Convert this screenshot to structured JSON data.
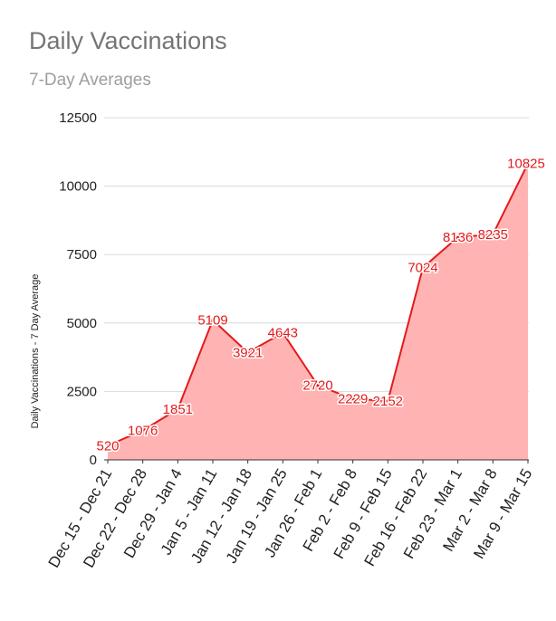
{
  "chart_data": {
    "type": "area",
    "title": "Daily Vaccinations",
    "subtitle": "7-Day Averages",
    "xlabel": "",
    "ylabel": "Daily Vaccinations - 7 Day Average",
    "categories": [
      "Dec 15 - Dec 21",
      "Dec 22 - Dec 28",
      "Dec 29 - Jan 4",
      "Jan 5 - Jan 11",
      "Jan 12 - Jan 18",
      "Jan 19 - Jan 25",
      "Jan 26 - Feb 1",
      "Feb 2 - Feb 8",
      "Feb 9 - Feb 15",
      "Feb 16 - Feb 22",
      "Feb 23 - Mar 1",
      "Mar 2 - Mar 8",
      "Mar 9 - Mar 15"
    ],
    "series": [
      {
        "values": [
          520,
          1076,
          1851,
          5109,
          3921,
          4643,
          2720,
          2229,
          2152,
          7024,
          8136,
          8235,
          10825
        ]
      }
    ],
    "ylim": [
      0,
      12500
    ],
    "yticks": [
      0,
      2500,
      5000,
      7500,
      10000,
      12500
    ],
    "ytick_labels": [
      "0",
      "2500",
      "5000",
      "7500",
      "10000",
      "12500"
    ],
    "grid": true,
    "legend": "none",
    "colors": {
      "line": "#e31a1c",
      "fill": "#ffb3b3",
      "grid": "#d9d9d9",
      "label": "#e31a1c"
    }
  }
}
